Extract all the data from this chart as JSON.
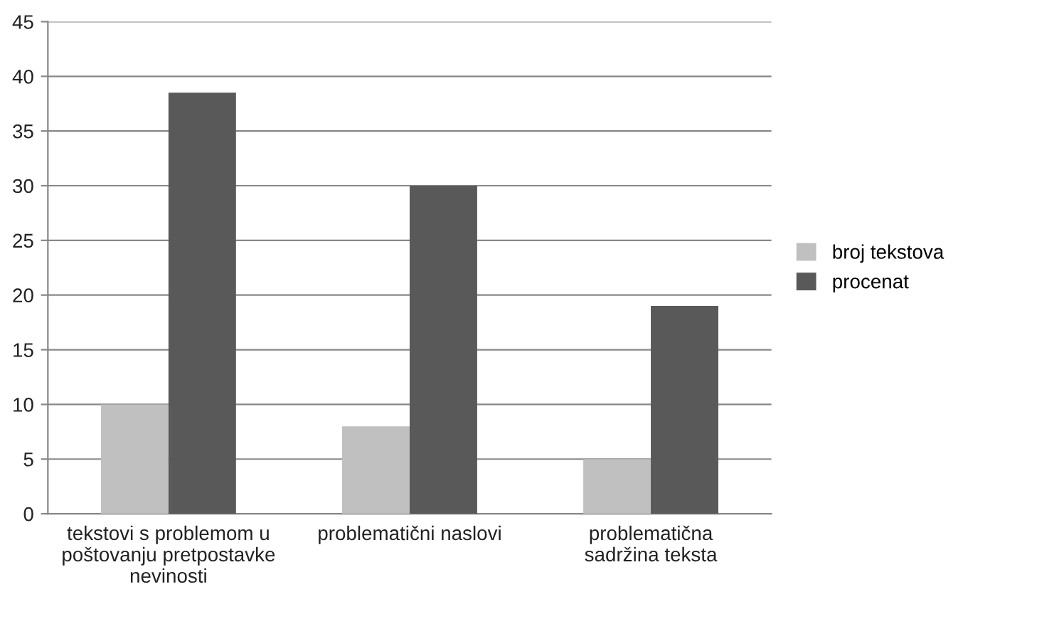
{
  "chart_data": {
    "type": "bar",
    "categories": [
      "tekstovi s problemom u\npoštovanju pretpostavke\nnevinosti",
      "problematični naslovi",
      "problematična\nsadržina teksta"
    ],
    "series": [
      {
        "name": "broj tekstova",
        "color": "#c0c0c0",
        "values": [
          10,
          8,
          5
        ]
      },
      {
        "name": "procenat",
        "color": "#595959",
        "values": [
          38.5,
          30,
          19
        ]
      }
    ],
    "ylim": [
      0,
      45
    ],
    "yticks": [
      0,
      5,
      10,
      15,
      20,
      25,
      30,
      35,
      40,
      45
    ],
    "grid": "y",
    "legend": "right"
  }
}
